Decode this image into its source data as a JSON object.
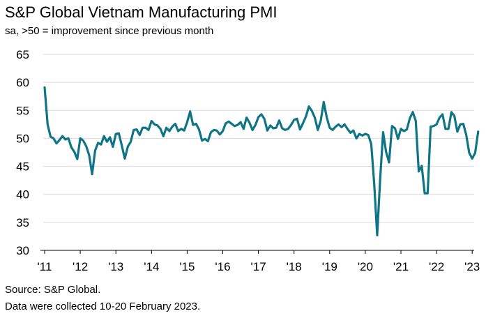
{
  "chart_data": {
    "type": "line",
    "title": "S&P Global Vietnam Manufacturing PMI",
    "subtitle": "sa, >50 = improvement since previous month",
    "ylim": [
      30,
      65
    ],
    "yticks": [
      30,
      35,
      40,
      45,
      50,
      55,
      60,
      65
    ],
    "xticks": [
      "'11",
      "'12",
      "'13",
      "'14",
      "'15",
      "'16",
      "'17",
      "'18",
      "'19",
      "'20",
      "'21",
      "'22",
      "'23"
    ],
    "grid": "horizontal",
    "line_color": "#0e7486",
    "series": [
      {
        "values": [
          59.1,
          52.5,
          50.3,
          50.0,
          49.1,
          49.7,
          50.4,
          49.8,
          50.0,
          48.4,
          47.6,
          46.3,
          50.0,
          49.6,
          48.6,
          47.0,
          43.6,
          47.8,
          49.2,
          48.9,
          50.4,
          49.4,
          50.2,
          48.5,
          50.8,
          50.9,
          48.7,
          46.4,
          48.5,
          49.4,
          51.5,
          51.6,
          50.6,
          51.9,
          51.9,
          51.5,
          53.1,
          52.5,
          52.3,
          51.7,
          50.4,
          51.9,
          51.3,
          52.1,
          52.6,
          51.3,
          51.7,
          51.4,
          52.9,
          54.8,
          52.4,
          52.6,
          51.6,
          49.6,
          49.9,
          49.5,
          51.1,
          51.5,
          51.4,
          50.7,
          51.3,
          52.7,
          53.0,
          52.6,
          52.2,
          52.4,
          52.9,
          51.7,
          53.7,
          52.8,
          51.5,
          52.4,
          53.8,
          54.3,
          53.5,
          51.4,
          52.3,
          51.8,
          51.9,
          53.2,
          51.8,
          51.5,
          51.7,
          52.4,
          53.3,
          53.5,
          51.6,
          52.7,
          53.9,
          55.7,
          54.9,
          53.7,
          51.5,
          53.2,
          56.5,
          53.8,
          51.9,
          51.5,
          52.1,
          52.5,
          52.0,
          52.5,
          51.7,
          51.0,
          51.4,
          50.0,
          50.8,
          50.5,
          50.8,
          50.6,
          49.0,
          41.9,
          32.7,
          42.7,
          51.1,
          47.6,
          45.7,
          52.2,
          51.8,
          49.9,
          51.7,
          51.3,
          51.6,
          53.6,
          54.7,
          53.1,
          44.1,
          45.1,
          40.2,
          40.2,
          52.1,
          52.2,
          52.5,
          53.7,
          54.3,
          51.7,
          51.7,
          54.7,
          54.0,
          51.2,
          52.5,
          52.6,
          50.6,
          47.4,
          46.4,
          47.4,
          51.2
        ]
      }
    ]
  },
  "footer": {
    "source": "Source: S&P Global.",
    "note": "Data were collected 10-20 February 2023."
  }
}
